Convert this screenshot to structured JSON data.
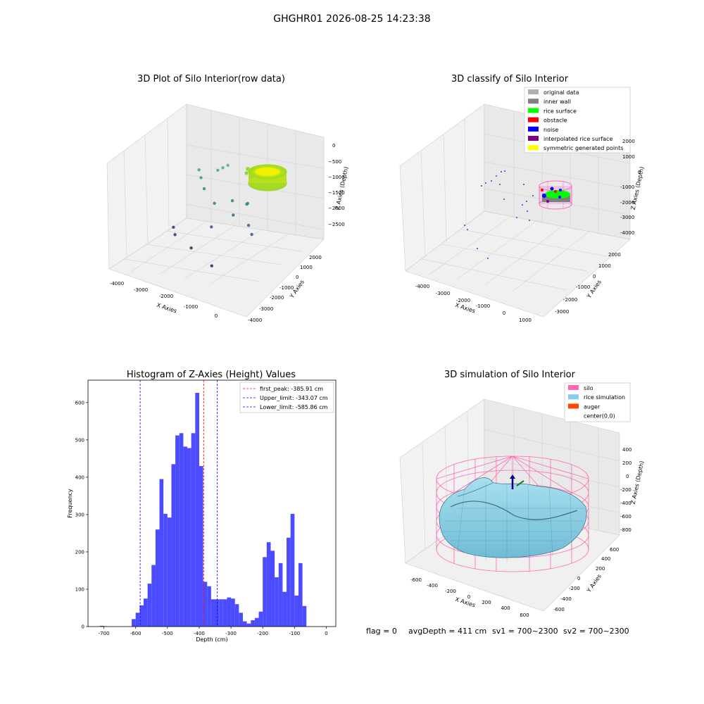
{
  "suptitle": "GHGHR01 2026-08-25 14:23:38",
  "footer": {
    "flag": "flag = 0",
    "avg_depth": "avgDepth = 411 cm",
    "sv1": "sv1 = 700~2300",
    "sv2": "sv2 = 700~2300"
  },
  "colors": {
    "hist_bar": "#4b4bff",
    "first_peak_line": "#ff0000",
    "limit_line": "#0000ff",
    "pane": "#f2f2f2",
    "grid": "#d8d8d8",
    "silo": "#ff69b4",
    "rice": "#87ceeb",
    "auger": "#ff4500",
    "noise": "#0000ff",
    "inner_wall": "#808080",
    "rice_surface": "#00ff00",
    "obstacle": "#ff0000",
    "interpolated": "#800080",
    "symmetric": "#ffff00",
    "original": "#b0b0b0"
  },
  "chart_data": [
    {
      "type": "scatter",
      "title": "3D Plot of Silo Interior(row data)",
      "xlabel": "X Axies",
      "ylabel": "Y Axies",
      "zlabel": "Z Axies (Depth)",
      "x_ticks": [
        "-4000",
        "-3000",
        "-2000",
        "-1000",
        "0"
      ],
      "y_ticks": [
        "-4000",
        "-3000",
        "-2000",
        "-1000",
        "0",
        "1000",
        "2000"
      ],
      "z_ticks": [
        "0",
        "−500",
        "−1000",
        "−1500",
        "−2000",
        "−2500"
      ],
      "xlim": [
        -4300,
        700
      ],
      "ylim": [
        -4200,
        2500
      ],
      "zlim": [
        -2800,
        0
      ],
      "colormap": "viridis",
      "scattered_points": [
        {
          "x": -3300,
          "y": 1200,
          "z": -1000
        },
        {
          "x": -3100,
          "y": 900,
          "z": -1100
        },
        {
          "x": -2700,
          "y": 1400,
          "z": -900
        },
        {
          "x": -2600,
          "y": 1600,
          "z": -850
        },
        {
          "x": -2500,
          "y": 1800,
          "z": -800
        },
        {
          "x": -2900,
          "y": 700,
          "z": -1300
        },
        {
          "x": -2400,
          "y": 400,
          "z": -1500
        },
        {
          "x": -2000,
          "y": 1000,
          "z": -1450
        },
        {
          "x": -1600,
          "y": 1300,
          "z": -1500
        },
        {
          "x": -1800,
          "y": 600,
          "z": -1700
        },
        {
          "x": -1400,
          "y": 900,
          "z": -1350
        },
        {
          "x": -1200,
          "y": 500,
          "z": -1800
        },
        {
          "x": -2300,
          "y": -100,
          "z": -2000
        },
        {
          "x": -3600,
          "y": -300,
          "z": -2300
        },
        {
          "x": -3500,
          "y": -400,
          "z": -2450
        },
        {
          "x": -2700,
          "y": -900,
          "z": -2500
        },
        {
          "x": -1700,
          "y": -1500,
          "z": -2600
        },
        {
          "x": -1000,
          "y": 300,
          "z": -1950
        }
      ],
      "dense_ring": {
        "cx": 0,
        "cy": 0,
        "radius": 650,
        "z_top": -700,
        "z_bottom": -1100
      }
    },
    {
      "type": "scatter",
      "title": "3D classify of Silo Interior",
      "xlabel": "X Axies",
      "ylabel": "Y Axies",
      "zlabel": "Z Axies (Depth)",
      "x_ticks": [
        "-4000",
        "-3000",
        "-2000",
        "-1000",
        "0",
        "1000"
      ],
      "y_ticks": [
        "-3000",
        "-2000",
        "-1000",
        "0",
        "1000",
        "2000"
      ],
      "z_ticks": [
        "2000",
        "1000",
        "0",
        "-1000",
        "-2000",
        "-3000",
        "-4000"
      ],
      "legend": [
        {
          "label": "original data",
          "color": "#b0b0b0"
        },
        {
          "label": "inner wall",
          "color": "#808080"
        },
        {
          "label": "rice surface",
          "color": "#00ff00"
        },
        {
          "label": "obstacle",
          "color": "#ff0000"
        },
        {
          "label": "noise",
          "color": "#0000ff"
        },
        {
          "label": "interpolated rice surface",
          "color": "#800080"
        },
        {
          "label": "symmetric generated points",
          "color": "#ffff00"
        }
      ]
    },
    {
      "type": "bar",
      "title": "Histogram of Z-Axies (Height) Values",
      "xlabel": "Depth (cm)",
      "ylabel": "Frequency",
      "xlim": [
        -750,
        30
      ],
      "ylim": [
        0,
        660
      ],
      "x_ticks": [
        -700,
        -600,
        -500,
        -400,
        -300,
        -200,
        -100,
        0
      ],
      "y_ticks": [
        0,
        100,
        200,
        300,
        400,
        500,
        600
      ],
      "bin_width": 12.5,
      "x": [
        -712.5,
        -700,
        -612.5,
        -600,
        -587.5,
        -575,
        -562.5,
        -550,
        -537.5,
        -525,
        -512.5,
        -500,
        -487.5,
        -475,
        -462.5,
        -450,
        -437.5,
        -425,
        -412.5,
        -400,
        -387.5,
        -375,
        -362.5,
        -350,
        -337.5,
        -325,
        -312.5,
        -300,
        -287.5,
        -275,
        -262.5,
        -250,
        -237.5,
        -225,
        -212.5,
        -200,
        -187.5,
        -175,
        -162.5,
        -150,
        -137.5,
        -125,
        -112.5,
        -100,
        -87.5,
        -75,
        -62.5,
        -50,
        -37.5,
        -25,
        -12.5
      ],
      "values": [
        2,
        1,
        20,
        37,
        57,
        75,
        115,
        165,
        260,
        395,
        302,
        292,
        435,
        512,
        518,
        482,
        478,
        518,
        626,
        430,
        120,
        108,
        73,
        73,
        73,
        73,
        78,
        75,
        60,
        37,
        14,
        8,
        17,
        23,
        40,
        186,
        226,
        203,
        132,
        170,
        93,
        238,
        302,
        83,
        170,
        55,
        0,
        0,
        0,
        0,
        0
      ],
      "lines": [
        {
          "label": "first_peak: -385.91 cm",
          "x": -385.91,
          "color": "#ff0000"
        },
        {
          "label": "Upper_limit: -343.07 cm",
          "x": -343.07,
          "color": "#0000ff"
        },
        {
          "label": "Lower_limit: -585.86 cm",
          "x": -585.86,
          "color": "#0000ff"
        }
      ],
      "legend_position": "top-right"
    },
    {
      "type": "area",
      "title": "3D simulation of Silo Interior",
      "xlabel": "X Axies",
      "ylabel": "Y Axies",
      "zlabel": "Z Axies (Depth)",
      "x_ticks": [
        "-600",
        "-400",
        "-200",
        "0",
        "200",
        "400",
        "600"
      ],
      "y_ticks": [
        "-600",
        "-400",
        "-200",
        "0",
        "200",
        "400",
        "600"
      ],
      "z_ticks": [
        "400",
        "200",
        "0",
        "-200",
        "-400",
        "-600",
        "-800"
      ],
      "legend": [
        {
          "label": "silo",
          "color": "#ff69b4"
        },
        {
          "label": "rice simulation",
          "color": "#87ceeb"
        },
        {
          "label": "auger",
          "color": "#ff4500"
        },
        {
          "label": "center(0,0)",
          "color": ""
        }
      ]
    }
  ]
}
